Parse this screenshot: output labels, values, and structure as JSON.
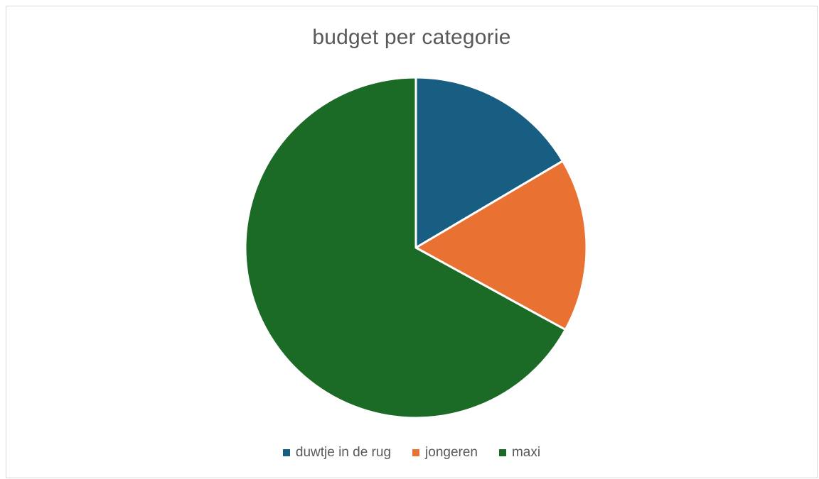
{
  "chart_data": {
    "type": "pie",
    "title": "budget per categorie",
    "categories": [
      "duwtje in de rug",
      "jongeren",
      "maxi"
    ],
    "values": [
      16.5,
      16.5,
      67
    ],
    "colors": [
      "#185e82",
      "#e97132",
      "#1b6b26"
    ],
    "legend_position": "bottom"
  }
}
